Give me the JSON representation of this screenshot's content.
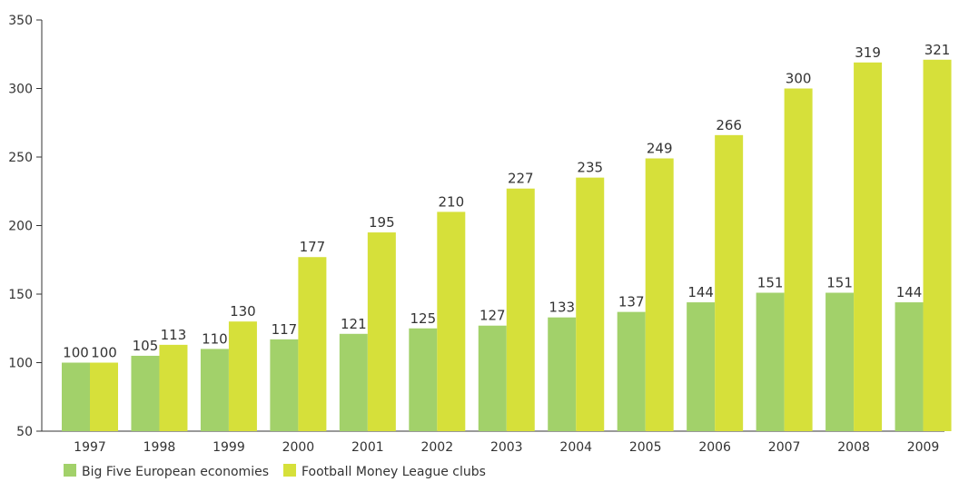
{
  "chart_data": {
    "type": "bar",
    "categories": [
      "1997",
      "1998",
      "1999",
      "2000",
      "2001",
      "2002",
      "2003",
      "2004",
      "2005",
      "2006",
      "2007",
      "2008",
      "2009"
    ],
    "series": [
      {
        "name": "Big Five European economies",
        "color": "#a2d16a",
        "values": [
          100,
          105,
          110,
          117,
          121,
          125,
          127,
          133,
          137,
          144,
          151,
          151,
          144
        ]
      },
      {
        "name": "Football Money League clubs",
        "color": "#d6e03a",
        "values": [
          100,
          113,
          130,
          177,
          195,
          210,
          227,
          235,
          249,
          266,
          300,
          319,
          321
        ]
      }
    ],
    "ylim": [
      50,
      350
    ],
    "yticks": [
      50,
      100,
      150,
      200,
      250,
      300,
      350
    ],
    "grid": false,
    "legend": "bottom-left"
  }
}
